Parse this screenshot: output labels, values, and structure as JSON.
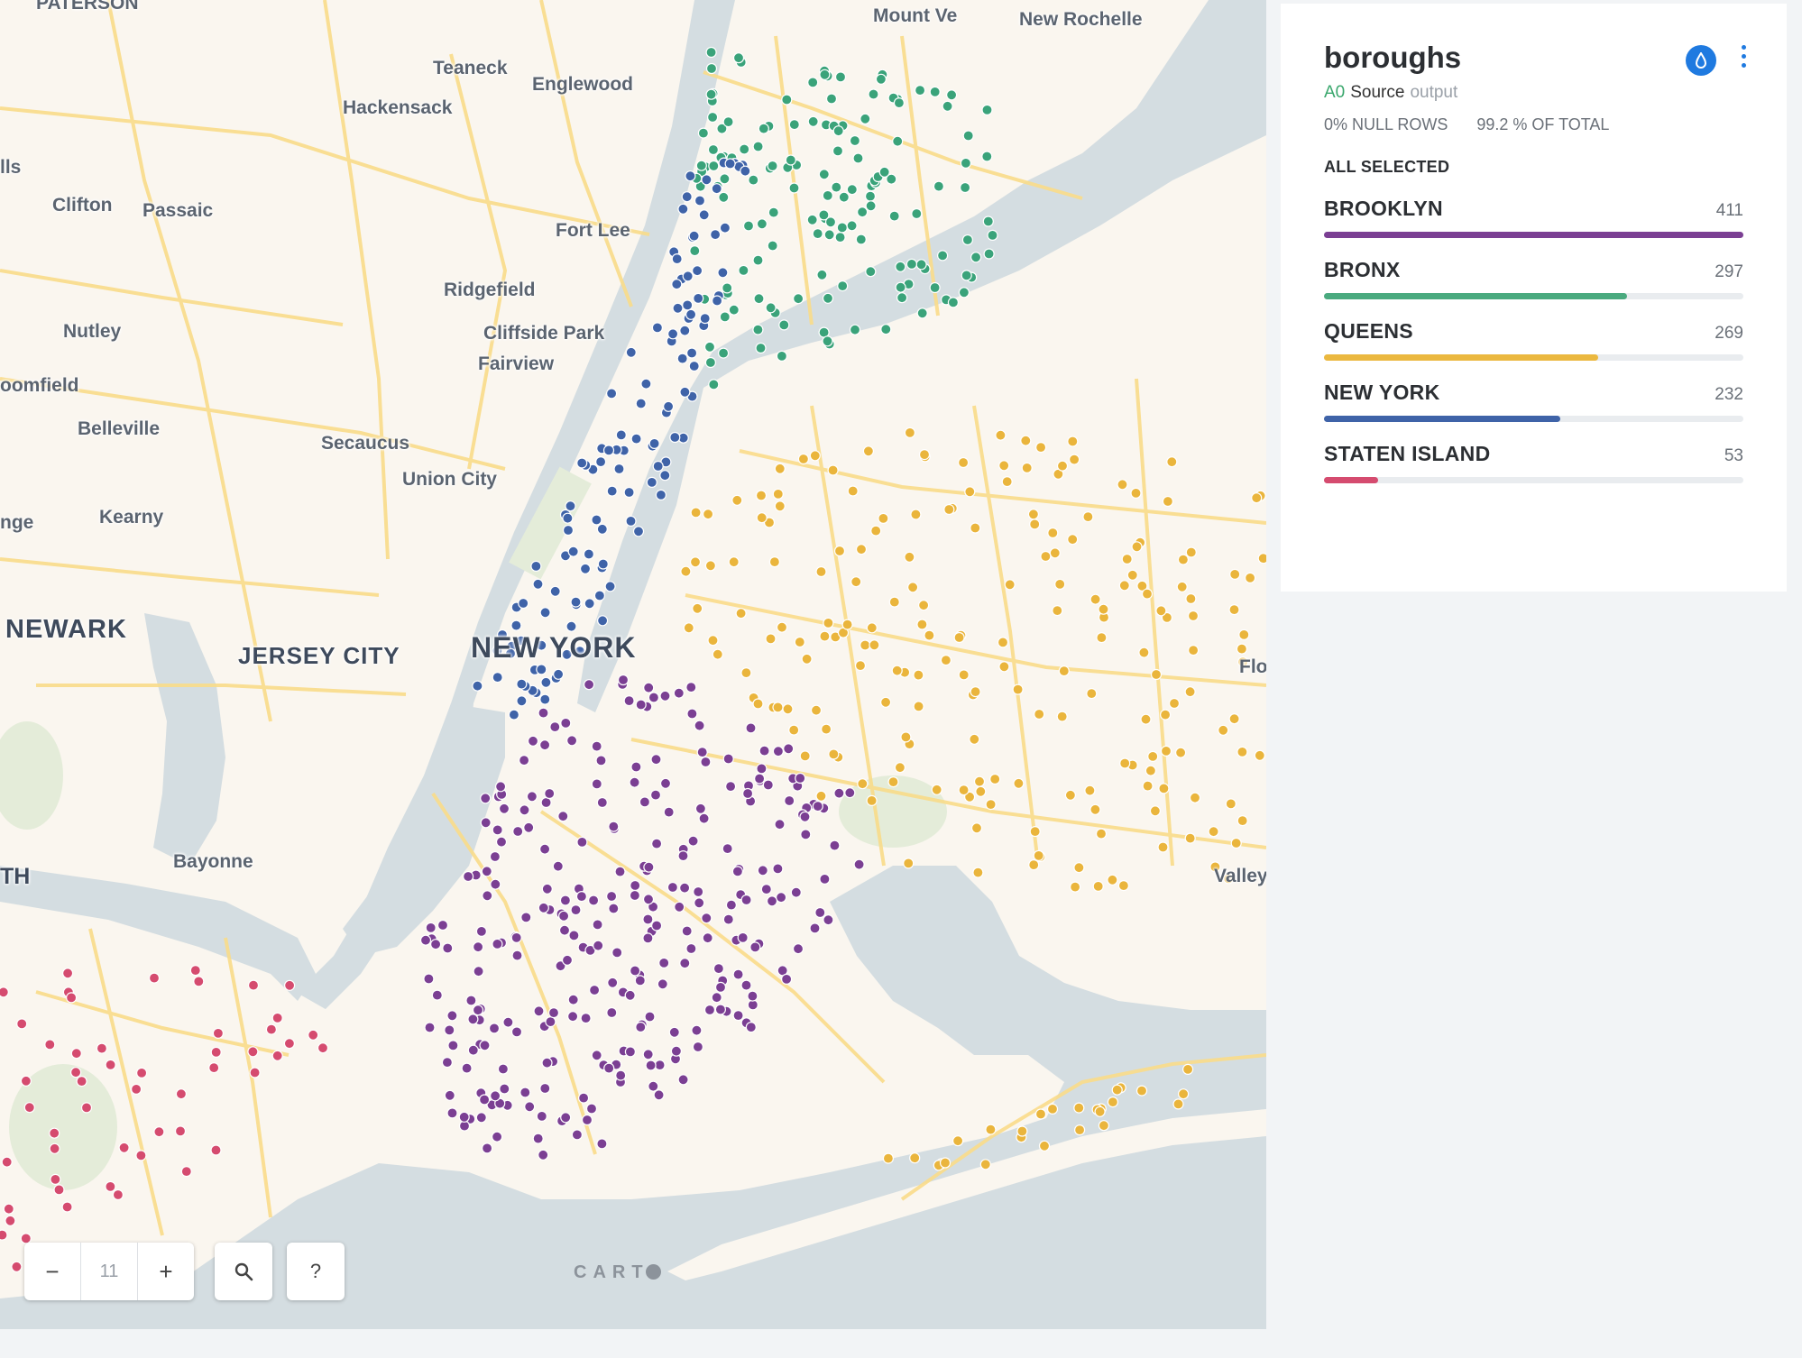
{
  "map": {
    "places": [
      {
        "id": "paterson",
        "label": "PATERSON"
      },
      {
        "id": "mount-vernon",
        "label": "Mount Ve"
      },
      {
        "id": "new-rochelle",
        "label": "New Rochelle"
      },
      {
        "id": "teaneck",
        "label": "Teaneck"
      },
      {
        "id": "englewood",
        "label": "Englewood"
      },
      {
        "id": "hackensack",
        "label": "Hackensack"
      },
      {
        "id": "lls",
        "label": "lls"
      },
      {
        "id": "clifton",
        "label": "Clifton"
      },
      {
        "id": "passaic",
        "label": "Passaic"
      },
      {
        "id": "fort-lee",
        "label": "Fort Lee"
      },
      {
        "id": "ridgefield",
        "label": "Ridgefield"
      },
      {
        "id": "nutley",
        "label": "Nutley"
      },
      {
        "id": "cliffside-park",
        "label": "Cliffside Park"
      },
      {
        "id": "fairview",
        "label": "Fairview"
      },
      {
        "id": "bloomfield",
        "label": "oomfield"
      },
      {
        "id": "belleville",
        "label": "Belleville"
      },
      {
        "id": "secaucus",
        "label": "Secaucus"
      },
      {
        "id": "union-city",
        "label": "Union City"
      },
      {
        "id": "orange",
        "label": "nge"
      },
      {
        "id": "kearny",
        "label": "Kearny"
      },
      {
        "id": "newark",
        "label": "NEWARK"
      },
      {
        "id": "jersey-city",
        "label": "JERSEY CITY"
      },
      {
        "id": "new-york",
        "label": "NEW YORK"
      },
      {
        "id": "flo",
        "label": "Flo"
      },
      {
        "id": "bayonne",
        "label": "Bayonne"
      },
      {
        "id": "th",
        "label": "TH"
      },
      {
        "id": "valley",
        "label": "Valley"
      }
    ],
    "colors": {
      "brooklyn": "#7b3f93",
      "bronx": "#3aa37a",
      "queens": "#eab53c",
      "new_york": "#3f63a8",
      "staten_island": "#d54b6f",
      "water": "#d4dde1",
      "land": "#faf6ef",
      "road": "#f9dc8a"
    },
    "zoom_level": "11",
    "zoom_out_label": "−",
    "zoom_in_label": "+",
    "search_icon": "magnifier-icon",
    "help_label": "?",
    "attribution": "CART"
  },
  "widget": {
    "title": "boroughs",
    "style_icon": "droplet-icon",
    "menu_icon": "vertical-dots-icon",
    "source": {
      "node": "A0",
      "name": "Source",
      "port": "output"
    },
    "stats": {
      "null_rows": "0% NULL ROWS",
      "of_total": "99.2 % OF TOTAL"
    },
    "selection_label": "ALL SELECTED",
    "max_value": 411,
    "categories": [
      {
        "name": "BROOKLYN",
        "count": "411",
        "value": 411,
        "color": "#7b3f93"
      },
      {
        "name": "BRONX",
        "count": "297",
        "value": 297,
        "color": "#4aaa7f"
      },
      {
        "name": "QUEENS",
        "count": "269",
        "value": 269,
        "color": "#ebb83f"
      },
      {
        "name": "NEW YORK",
        "count": "232",
        "value": 232,
        "color": "#3f63a8"
      },
      {
        "name": "STATEN ISLAND",
        "count": "53",
        "value": 53,
        "color": "#d54b6f"
      }
    ]
  }
}
